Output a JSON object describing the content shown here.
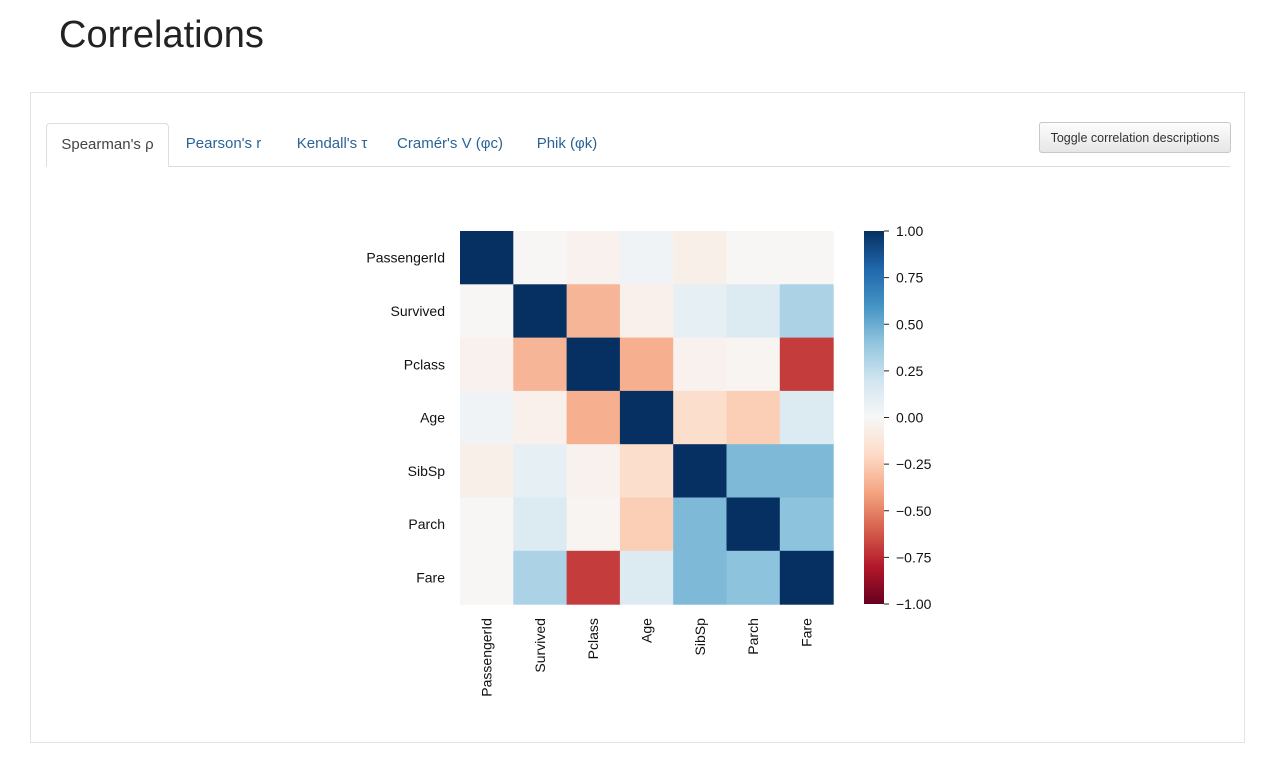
{
  "page": {
    "title": "Correlations"
  },
  "tabs": [
    {
      "label": "Spearman's ρ",
      "active": true
    },
    {
      "label": "Pearson's r",
      "active": false
    },
    {
      "label": "Kendall's τ",
      "active": false
    },
    {
      "label": "Cramér's V (φc)",
      "active": false
    },
    {
      "label": "Phik (φk)",
      "active": false
    }
  ],
  "toolbar": {
    "toggle_label": "Toggle correlation descriptions"
  },
  "chart_data": {
    "type": "heatmap",
    "title": "",
    "variables": [
      "PassengerId",
      "Survived",
      "Pclass",
      "Age",
      "SibSp",
      "Parch",
      "Fare"
    ],
    "matrix": [
      [
        1.0,
        -0.01,
        -0.04,
        0.04,
        -0.06,
        -0.01,
        -0.01
      ],
      [
        -0.01,
        1.0,
        -0.34,
        -0.05,
        0.09,
        0.14,
        0.32
      ],
      [
        -0.04,
        -0.34,
        1.0,
        -0.36,
        -0.04,
        -0.02,
        -0.7
      ],
      [
        0.04,
        -0.05,
        -0.36,
        1.0,
        -0.18,
        -0.25,
        0.14
      ],
      [
        -0.06,
        0.09,
        -0.04,
        -0.18,
        1.0,
        0.45,
        0.45
      ],
      [
        -0.01,
        0.14,
        -0.02,
        -0.25,
        0.45,
        1.0,
        0.41
      ],
      [
        -0.01,
        0.32,
        -0.7,
        0.14,
        0.45,
        0.41,
        1.0
      ]
    ],
    "colorbar": {
      "range": [
        -1.0,
        1.0
      ],
      "ticks": [
        "1.00",
        "0.75",
        "0.50",
        "0.25",
        "0.00",
        "−0.25",
        "−0.50",
        "−0.75",
        "−1.00"
      ],
      "colormap": "RdBu",
      "colors": [
        "#67001f",
        "#b2182b",
        "#d6604d",
        "#f4a582",
        "#fddbc7",
        "#f7f7f7",
        "#d1e5f0",
        "#92c5de",
        "#4393c3",
        "#2166ac",
        "#053061"
      ]
    }
  }
}
